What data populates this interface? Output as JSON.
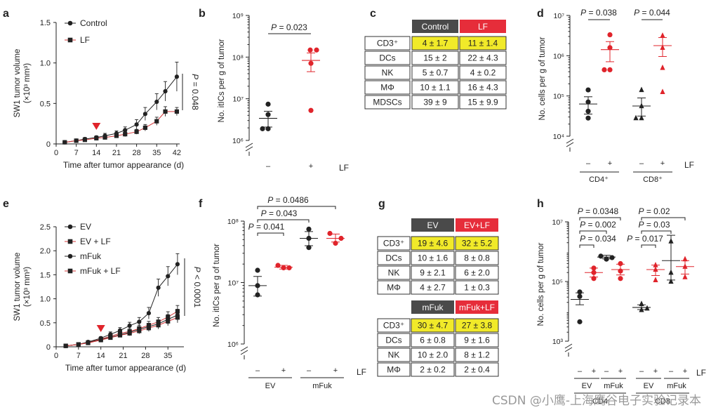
{
  "panel_letters": [
    "a",
    "b",
    "c",
    "d",
    "e",
    "f",
    "g",
    "h"
  ],
  "colors": {
    "red": "#e0242b",
    "dark": "#222222",
    "header_dark": "#4a4a4a",
    "header_red": "#e62d3a",
    "yellow": "#f1ea29"
  },
  "chart_data": [
    {
      "id": "a",
      "type": "line",
      "title": "",
      "ylabel_line1": "SW1 tumor volume",
      "ylabel_line2": "(×10³ mm³)",
      "xlabel": "Time after tumor appearance (d)",
      "xlim": [
        0,
        43
      ],
      "ylim": [
        0,
        1.5
      ],
      "xticks": [
        0,
        7,
        14,
        21,
        28,
        35,
        42
      ],
      "yticks": [
        0,
        0.5,
        1.0,
        1.5
      ],
      "ytick_labels": [
        "0",
        "0.5",
        "1.0",
        "1.5"
      ],
      "treatment_day": 14,
      "pvalue": "P = 0.048",
      "series": [
        {
          "name": "Control",
          "marker": "circle",
          "color": "#222222",
          "x": [
            3,
            7,
            10,
            14,
            17,
            21,
            24,
            28,
            31,
            35,
            38,
            42
          ],
          "y": [
            0.02,
            0.04,
            0.06,
            0.08,
            0.1,
            0.13,
            0.17,
            0.24,
            0.37,
            0.52,
            0.65,
            0.83
          ],
          "err": [
            0.01,
            0.01,
            0.02,
            0.02,
            0.03,
            0.03,
            0.04,
            0.06,
            0.08,
            0.1,
            0.12,
            0.18
          ]
        },
        {
          "name": "LF",
          "marker": "square",
          "color": "#d4383a",
          "x": [
            3,
            7,
            10,
            14,
            17,
            21,
            24,
            28,
            31,
            35,
            38,
            42
          ],
          "y": [
            0.02,
            0.04,
            0.05,
            0.07,
            0.08,
            0.1,
            0.12,
            0.15,
            0.2,
            0.28,
            0.4,
            0.4
          ],
          "err": [
            0.01,
            0.01,
            0.01,
            0.02,
            0.02,
            0.02,
            0.03,
            0.03,
            0.04,
            0.05,
            0.06,
            0.05
          ]
        }
      ]
    },
    {
      "id": "b",
      "type": "scatter",
      "ylabel": "No. itICs per g of tumor",
      "yscale": "log",
      "ylim_exp": [
        6,
        9
      ],
      "ytick_labels": [
        "10⁶",
        "10⁷",
        "10⁸",
        "10⁹"
      ],
      "categories": [
        "–",
        "+"
      ],
      "group_label": "LF",
      "pvalues": [
        "P = 0.023"
      ],
      "groups": [
        {
          "name": "–",
          "color": "#222222",
          "points_log10": [
            6.87,
            6.62,
            6.28,
            6.28
          ],
          "mean_log10": 6.53,
          "sem_log10": [
            6.32,
            6.7
          ]
        },
        {
          "name": "+",
          "color": "#e0242b",
          "points_log10": [
            8.17,
            8.17,
            7.85,
            6.72
          ],
          "mean_log10": 7.92,
          "sem_log10": [
            7.65,
            8.1
          ]
        }
      ]
    },
    {
      "id": "d",
      "type": "scatter",
      "ylabel": "No. cells per g of tumor",
      "yscale": "log",
      "ylim_exp": [
        4,
        7
      ],
      "ytick_labels": [
        "10⁴",
        "10⁵",
        "10⁶",
        "10⁷"
      ],
      "group_label": "LF",
      "ticks": [
        "–",
        "+",
        "–",
        "+"
      ],
      "cell_types": [
        "CD4⁺",
        "CD8⁺"
      ],
      "pvalues": [
        "P = 0.038",
        "P = 0.044"
      ],
      "groups": [
        {
          "name": "CD4 –",
          "marker": "circle",
          "color": "#222222",
          "points_log10": [
            5.15,
            4.85,
            4.62,
            4.45
          ],
          "mean_log10": 4.8,
          "sem_log10": [
            4.55,
            4.98
          ]
        },
        {
          "name": "CD4 +",
          "marker": "circle",
          "color": "#e0242b",
          "points_log10": [
            6.52,
            6.2,
            5.65,
            5.65
          ],
          "mean_log10": 6.15,
          "sem_log10": [
            5.85,
            6.35
          ]
        },
        {
          "name": "CD8 –",
          "marker": "triangle",
          "color": "#222222",
          "points_log10": [
            5.15,
            4.75,
            4.45,
            4.45
          ],
          "mean_log10": 4.75,
          "sem_log10": [
            4.5,
            4.95
          ]
        },
        {
          "name": "CD8 +",
          "marker": "triangle",
          "color": "#e0242b",
          "points_log10": [
            6.5,
            6.2,
            5.7,
            5.1
          ],
          "mean_log10": 6.25,
          "sem_log10": [
            5.98,
            6.45
          ]
        }
      ]
    },
    {
      "id": "e",
      "type": "line",
      "ylabel_line1": "SW1 tumor volume",
      "ylabel_line2": "(×10³ mm³)",
      "xlabel": "Time after tumor appearance (d)",
      "xlim": [
        0,
        40
      ],
      "ylim": [
        0,
        2.5
      ],
      "xticks": [
        0,
        7,
        14,
        21,
        28,
        35
      ],
      "yticks": [
        0,
        0.5,
        1.0,
        1.5,
        2.0,
        2.5
      ],
      "ytick_labels": [
        "0",
        "0.5",
        "1.0",
        "1.5",
        "2.0",
        "2.5"
      ],
      "treatment_day": 14,
      "pvalue": "P < 0.0001",
      "series": [
        {
          "name": "EV",
          "marker": "circle",
          "color": "#222222",
          "x": [
            3,
            7,
            10,
            14,
            17,
            20,
            23,
            26,
            29,
            32,
            35,
            38
          ],
          "y": [
            0.02,
            0.05,
            0.1,
            0.18,
            0.26,
            0.34,
            0.44,
            0.52,
            0.7,
            1.23,
            1.47,
            1.72
          ],
          "err": [
            0.01,
            0.01,
            0.02,
            0.03,
            0.05,
            0.06,
            0.07,
            0.09,
            0.12,
            0.18,
            0.2,
            0.22
          ]
        },
        {
          "name": "EV + LF",
          "marker": "square",
          "color": "#222222",
          "x": [
            3,
            7,
            10,
            14,
            17,
            20,
            23,
            26,
            29,
            32,
            35,
            38
          ],
          "y": [
            0.02,
            0.05,
            0.09,
            0.16,
            0.22,
            0.28,
            0.32,
            0.38,
            0.45,
            0.52,
            0.62,
            0.74
          ],
          "err": [
            0.01,
            0.01,
            0.02,
            0.03,
            0.04,
            0.05,
            0.06,
            0.07,
            0.08,
            0.09,
            0.11,
            0.12
          ]
        },
        {
          "name": "mFuk",
          "marker": "circle",
          "color": "#222222",
          "x": [
            3,
            7,
            10,
            14,
            17,
            20,
            23,
            26,
            29,
            32,
            35,
            38
          ],
          "y": [
            0.02,
            0.05,
            0.09,
            0.15,
            0.2,
            0.25,
            0.3,
            0.36,
            0.42,
            0.48,
            0.57,
            0.66
          ],
          "err": [
            0.01,
            0.01,
            0.02,
            0.03,
            0.04,
            0.05,
            0.05,
            0.06,
            0.07,
            0.08,
            0.1,
            0.12
          ]
        },
        {
          "name": "mFuk + LF",
          "marker": "square",
          "color": "#222222",
          "x": [
            3,
            7,
            10,
            14,
            17,
            20,
            23,
            26,
            29,
            32,
            35,
            38
          ],
          "y": [
            0.02,
            0.05,
            0.08,
            0.14,
            0.19,
            0.24,
            0.28,
            0.33,
            0.39,
            0.45,
            0.53,
            0.61
          ],
          "err": [
            0.01,
            0.01,
            0.02,
            0.02,
            0.03,
            0.04,
            0.05,
            0.06,
            0.07,
            0.08,
            0.09,
            0.11
          ]
        }
      ]
    },
    {
      "id": "f",
      "type": "scatter",
      "ylabel": "No. itICs per g of tumor",
      "yscale": "log",
      "ylim_exp": [
        6,
        8
      ],
      "ytick_labels": [
        "10⁶",
        "10⁷",
        "10⁸"
      ],
      "group_label": "LF",
      "ticks": [
        "–",
        "+",
        "–",
        "+"
      ],
      "conditions": [
        "EV",
        "mFuk"
      ],
      "pvalues": [
        "P = 0.0486",
        "P = 0.043",
        "P = 0.041"
      ],
      "groups": [
        {
          "name": "EV –",
          "color": "#222222",
          "points_log10": [
            7.2,
            6.95,
            6.8
          ],
          "mean_log10": 6.95,
          "sem_log10": [
            6.78,
            7.1
          ]
        },
        {
          "name": "EV +",
          "color": "#e0242b",
          "points_log10": [
            7.28,
            7.24,
            7.24
          ],
          "mean_log10": 7.25,
          "sem_log10": [
            7.22,
            7.28
          ]
        },
        {
          "name": "mFuk –",
          "color": "#222222",
          "points_log10": [
            7.87,
            7.72,
            7.57
          ],
          "mean_log10": 7.72,
          "sem_log10": [
            7.6,
            7.83
          ]
        },
        {
          "name": "mFuk +",
          "color": "#e0242b",
          "points_log10": [
            7.8,
            7.72,
            7.64
          ],
          "mean_log10": 7.72,
          "sem_log10": [
            7.66,
            7.79
          ]
        }
      ]
    },
    {
      "id": "h",
      "type": "scatter",
      "ylabel": "No. cells per g of tumor",
      "yscale": "log",
      "ylim_exp": [
        3,
        7
      ],
      "ytick_labels": [
        "10³",
        "10⁵",
        "10⁷"
      ],
      "group_label": "LF",
      "ticks": [
        "–",
        "+",
        "–",
        "+",
        "–",
        "+",
        "–",
        "+"
      ],
      "conditions": [
        "EV",
        "mFuk",
        "EV",
        "mFuk"
      ],
      "cell_types": [
        "CD4",
        "CD8"
      ],
      "pvalues_cd4": [
        "P = 0.0348",
        "P = 0.002",
        "P = 0.034"
      ],
      "pvalues_cd8": [
        "P = 0.02",
        "P = 0.03",
        "P = 0.017"
      ],
      "groups": [
        {
          "name": "CD4 EV –",
          "marker": "circle",
          "color": "#222222",
          "points_log10": [
            4.65,
            4.5,
            3.65
          ],
          "mean_log10": 4.4,
          "sem_log10": [
            4.22,
            4.62
          ]
        },
        {
          "name": "CD4 EV +",
          "marker": "circle",
          "color": "#e0242b",
          "points_log10": [
            5.45,
            5.3,
            5.1
          ],
          "mean_log10": 5.3,
          "sem_log10": [
            5.15,
            5.45
          ]
        },
        {
          "name": "CD4 mFuk –",
          "marker": "circle",
          "color": "#222222",
          "points_log10": [
            5.85,
            5.8,
            5.75
          ],
          "mean_log10": 5.82,
          "sem_log10": [
            5.76,
            5.88
          ]
        },
        {
          "name": "CD4 mFuk +",
          "marker": "circle",
          "color": "#e0242b",
          "points_log10": [
            5.6,
            5.35,
            5.1
          ],
          "mean_log10": 5.4,
          "sem_log10": [
            5.22,
            5.58
          ]
        },
        {
          "name": "CD8 EV –",
          "marker": "triangle",
          "color": "#222222",
          "points_log10": [
            4.25,
            4.1,
            4.05
          ],
          "mean_log10": 4.13,
          "sem_log10": [
            4.06,
            4.22
          ]
        },
        {
          "name": "CD8 EV +",
          "marker": "triangle",
          "color": "#e0242b",
          "points_log10": [
            5.55,
            5.4,
            5.05
          ],
          "mean_log10": 5.4,
          "sem_log10": [
            5.2,
            5.55
          ]
        },
        {
          "name": "CD8 mFuk –",
          "marker": "triangle",
          "color": "#222222",
          "points_log10": [
            6.35,
            5.3,
            5.0
          ],
          "mean_log10": 5.7,
          "sem_log10": [
            5.05,
            6.55
          ]
        },
        {
          "name": "CD8 mFuk +",
          "marker": "triangle",
          "color": "#e0242b",
          "points_log10": [
            5.75,
            5.5,
            5.15
          ],
          "mean_log10": 5.5,
          "sem_log10": [
            5.25,
            5.7
          ]
        }
      ]
    }
  ],
  "table_c": {
    "headers": [
      "Control",
      "LF"
    ],
    "rows": [
      {
        "label": "CD3⁺",
        "values": [
          "4 ± 1.7",
          "11 ± 1.4"
        ],
        "highlight": true
      },
      {
        "label": "DCs",
        "values": [
          "15 ± 2",
          "22 ± 4.3"
        ],
        "highlight": false
      },
      {
        "label": "NK",
        "values": [
          "5 ± 0.7",
          "4 ±  0.2"
        ],
        "highlight": false
      },
      {
        "label": "MΦ",
        "values": [
          "10 ± 1.1",
          "16 ± 4.3"
        ],
        "highlight": false
      },
      {
        "label": "MDSCs",
        "values": [
          "39 ± 9",
          "15 ± 9.9"
        ],
        "highlight": false
      }
    ]
  },
  "table_g": {
    "block1": {
      "headers": [
        "EV",
        "EV+LF"
      ],
      "rows": [
        {
          "label": "CD3⁺",
          "values": [
            "19 ± 4.6",
            "32 ± 5.2"
          ],
          "highlight": true
        },
        {
          "label": "DCs",
          "values": [
            "10 ± 1.6",
            "8 ± 0.8"
          ],
          "highlight": false
        },
        {
          "label": "NK",
          "values": [
            "9 ± 2.1",
            "6 ± 2.0"
          ],
          "highlight": false
        },
        {
          "label": "MΦ",
          "values": [
            "4 ± 2.7",
            "1 ± 0.3"
          ],
          "highlight": false
        }
      ]
    },
    "block2": {
      "headers": [
        "mFuk",
        "mFuk+LF"
      ],
      "rows": [
        {
          "label": "CD3⁺",
          "values": [
            "30 ± 4.7",
            "27 ± 3.8"
          ],
          "highlight": true
        },
        {
          "label": "DCs",
          "values": [
            "6 ± 0.8",
            "9 ± 1.6"
          ],
          "highlight": false
        },
        {
          "label": "NK",
          "values": [
            "10 ± 2.0",
            "8 ± 1.2"
          ],
          "highlight": false
        },
        {
          "label": "MΦ",
          "values": [
            "2 ± 0.2",
            "2 ± 0.4"
          ],
          "highlight": false
        }
      ]
    }
  },
  "watermark": "CSDN @小鹰-上海鹰谷电子实验记录本"
}
